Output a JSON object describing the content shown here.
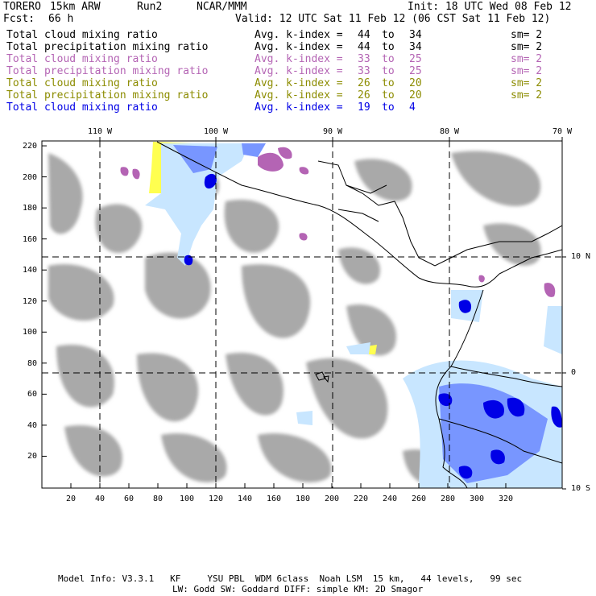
{
  "header": {
    "model": "TORERO",
    "resolution": "15km ARW",
    "run": "Run2",
    "org": "NCAR/MMM",
    "init": "Init: 18 UTC Wed 08 Feb 12",
    "fcst_label": "Fcst:",
    "fcst_value": "66 h",
    "valid": "Valid: 12 UTC Sat 11 Feb 12 (06 CST Sat 11 Feb 12)"
  },
  "legend_rows": [
    {
      "field": "Total cloud mixing ratio",
      "index_label": "Avg. k-index =",
      "from": "44",
      "to_word": "to",
      "to": "34",
      "sm": "sm= 2",
      "color": "#000000"
    },
    {
      "field": "Total precipitation mixing ratio",
      "index_label": "Avg. k-index =",
      "from": "44",
      "to_word": "to",
      "to": "34",
      "sm": "sm= 2",
      "color": "#000000"
    },
    {
      "field": "Total cloud mixing ratio",
      "index_label": "Avg. k-index =",
      "from": "33",
      "to_word": "to",
      "to": "25",
      "sm": "sm= 2",
      "color": "#b464b4"
    },
    {
      "field": "Total precipitation mixing ratio",
      "index_label": "Avg. k-index =",
      "from": "33",
      "to_word": "to",
      "to": "25",
      "sm": "sm= 2",
      "color": "#b464b4"
    },
    {
      "field": "Total cloud mixing ratio",
      "index_label": "Avg. k-index =",
      "from": "26",
      "to_word": "to",
      "to": "20",
      "sm": "sm= 2",
      "color": "#8c8c00"
    },
    {
      "field": "Total precipitation mixing ratio",
      "index_label": "Avg. k-index =",
      "from": "26",
      "to_word": "to",
      "to": "20",
      "sm": "sm= 2",
      "color": "#8c8c00"
    },
    {
      "field": "Total cloud mixing ratio",
      "index_label": "Avg. k-index =",
      "from": "19",
      "to_word": "to",
      "to": "4",
      "sm": "",
      "color": "#0000e6"
    }
  ],
  "axes": {
    "top_longitudes": [
      "110 W",
      "100 W",
      "90 W",
      "80 W",
      "70 W"
    ],
    "right_latitudes": [
      "10 N",
      "0",
      "10 S"
    ],
    "left_ticks": [
      "220",
      "200",
      "180",
      "160",
      "140",
      "120",
      "100",
      "80",
      "60",
      "40",
      "20"
    ],
    "bottom_ticks": [
      "20",
      "40",
      "60",
      "80",
      "100",
      "120",
      "140",
      "160",
      "180",
      "200",
      "220",
      "240",
      "260",
      "280",
      "300",
      "320"
    ]
  },
  "footer": {
    "line1": "Model Info: V3.3.1   KF     YSU PBL  WDM 6class  Noah LSM  15 km,   44 levels,   99 sec",
    "line2": "LW: Godd SW: Goddard DIFF: simple KM: 2D Smagor"
  },
  "colors": {
    "gray_cloud": "#a9a9a9",
    "yellow_cloud": "#ffff50",
    "purple_cloud": "#b464b4",
    "light_blue": "#c8e6ff",
    "mid_blue": "#7896ff",
    "dark_blue": "#0000e6"
  }
}
